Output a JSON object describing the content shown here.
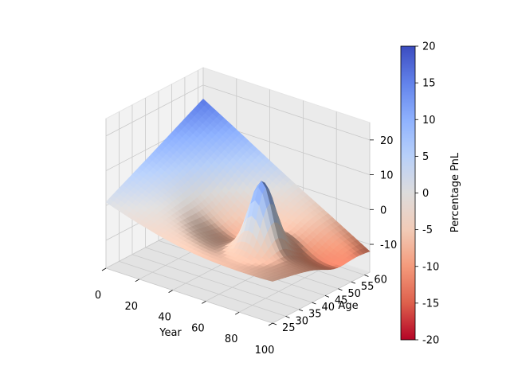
{
  "chart_data": {
    "type": "surface",
    "title": "",
    "xlabel": "Year",
    "ylabel": "Age",
    "zlabel": "",
    "x_ticks": [
      0,
      20,
      40,
      60,
      80,
      100
    ],
    "y_ticks": [
      25,
      30,
      35,
      40,
      45,
      50,
      55,
      60
    ],
    "z_ticks": [
      -10,
      0,
      10,
      20
    ],
    "xlim": [
      0,
      100
    ],
    "ylim": [
      25,
      62
    ],
    "zlim": [
      -18,
      25
    ],
    "grid": true,
    "colormap": "coolwarm_r",
    "colorbar": {
      "label": "Percentage PnL",
      "range": [
        -20,
        20
      ],
      "ticks": [
        -20,
        -15,
        -10,
        -5,
        0,
        5,
        10,
        15,
        20
      ]
    },
    "surface_points": [
      {
        "year": 0,
        "age": 25,
        "pnl": 1
      },
      {
        "year": 0,
        "age": 62,
        "pnl": 16
      },
      {
        "year": 50,
        "age": 45,
        "pnl": -3
      },
      {
        "year": 70,
        "age": 25,
        "pnl": -6
      },
      {
        "year": 70,
        "age": 40,
        "pnl": 16
      },
      {
        "year": 100,
        "age": 25,
        "pnl": -6
      },
      {
        "year": 100,
        "age": 62,
        "pnl": -12
      }
    ]
  }
}
